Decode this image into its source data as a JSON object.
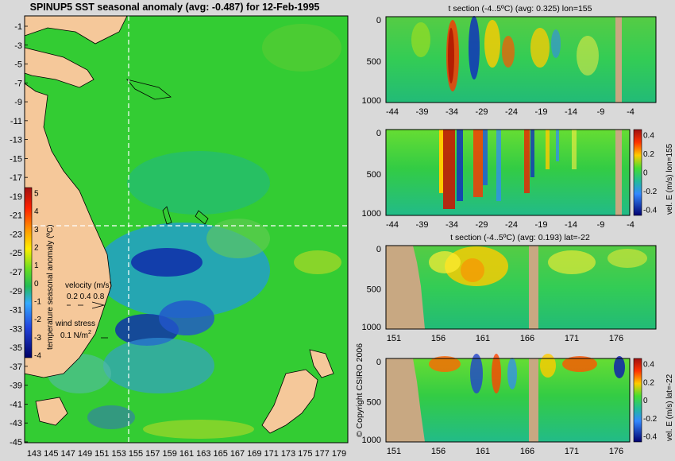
{
  "title": "SPINUP5 SST seasonal anomaly (avg: -0.487) for 12-Feb-1995",
  "copyright": "© Copyright CSIRO 2006",
  "colors": {
    "ocean_green": "#33cc33",
    "land": "#f5c89a",
    "section_land": "#c8a882",
    "crosshair": "#ffffff",
    "arrows": "#d060d0"
  },
  "chart_data": [
    {
      "type": "heatmap",
      "title": "SPINUP5 SST seasonal anomaly (avg: -0.487) for 12-Feb-1995",
      "x_ticks": [
        "143",
        "145",
        "147",
        "149",
        "151",
        "153",
        "155",
        "157",
        "159",
        "161",
        "163",
        "165",
        "167",
        "169",
        "171",
        "173",
        "175",
        "177",
        "179"
      ],
      "y_ticks": [
        "-1",
        "-3",
        "-5",
        "-7",
        "-9",
        "-11",
        "-13",
        "-15",
        "-17",
        "-19",
        "-21",
        "-23",
        "-25",
        "-27",
        "-29",
        "-31",
        "-33",
        "-35",
        "-37",
        "-39",
        "-41",
        "-43",
        "-45"
      ],
      "colorbar": {
        "label": "temperature seasonal anomaly (ºC)",
        "ticks": [
          "5",
          "4",
          "3",
          "2",
          "1",
          "0",
          "-1",
          "-2",
          "-3",
          "-4"
        ],
        "range": [
          -4,
          5
        ]
      },
      "legend": {
        "velocity_label": "velocity (m/s)",
        "velocity_scale": "0.2 0.4 0.8",
        "wind_label": "wind stress",
        "wind_scale": "0.1 N/m",
        "wind_unit_exp": "2"
      },
      "crosshair": {
        "lon": 155,
        "lat": -22
      }
    },
    {
      "type": "heatmap",
      "title": "t section (-4..5ºC) (avg: 0.325) lon=155",
      "x_ticks": [
        "-44",
        "-39",
        "-34",
        "-29",
        "-24",
        "-19",
        "-14",
        "-9",
        "-4"
      ],
      "y_ticks": [
        "0",
        "500",
        "1000"
      ]
    },
    {
      "type": "heatmap",
      "title": "",
      "x_ticks": [
        "-44",
        "-39",
        "-34",
        "-29",
        "-24",
        "-19",
        "-14",
        "-9",
        "-4"
      ],
      "y_ticks": [
        "0",
        "500",
        "1000"
      ],
      "colorbar": {
        "label": "vel. E (m/s) lon=155",
        "ticks": [
          "0.4",
          "0.2",
          "0",
          "-0.2",
          "-0.4"
        ],
        "range": [
          -0.4,
          0.4
        ]
      }
    },
    {
      "type": "heatmap",
      "title": "t section (-4..5ºC) (avg: 0.193) lat=-22",
      "x_ticks": [
        "151",
        "156",
        "161",
        "166",
        "171",
        "176"
      ],
      "y_ticks": [
        "0",
        "500",
        "1000"
      ]
    },
    {
      "type": "heatmap",
      "title": "",
      "x_ticks": [
        "151",
        "156",
        "161",
        "166",
        "171",
        "176"
      ],
      "y_ticks": [
        "0",
        "500",
        "1000"
      ],
      "colorbar": {
        "label": "vel. E (m/s) lat=-22",
        "ticks": [
          "0.4",
          "0.2",
          "0",
          "-0.2",
          "-0.4"
        ],
        "range": [
          -0.4,
          0.4
        ]
      }
    }
  ]
}
